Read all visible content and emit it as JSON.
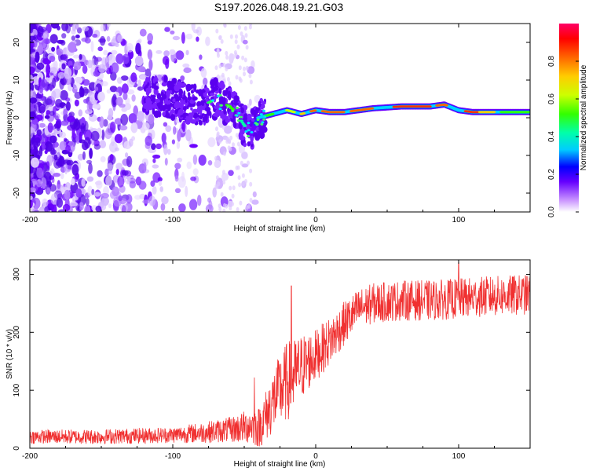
{
  "title": "S197.2026.048.19.21.G03",
  "chart_data": [
    {
      "type": "heatmap",
      "name": "spectrogram",
      "xlabel": "Height of straight line (km)",
      "ylabel": "Frequency (Hz)",
      "xlim": [
        -200,
        150
      ],
      "ylim": [
        -25,
        25
      ],
      "xticks": [
        -200,
        -100,
        0,
        100
      ],
      "yticks": [
        -20,
        -10,
        0,
        10,
        20
      ],
      "colorbar": {
        "label": "Normalized spectral amplitude",
        "range": [
          0,
          1
        ],
        "ticks": [
          0.0,
          0.2,
          0.4,
          0.6,
          0.8
        ],
        "tick_labels": [
          "0.0",
          "0.2",
          "0.4",
          "0.6",
          "0.8"
        ]
      },
      "ridge": {
        "x": [
          -115,
          -100,
          -90,
          -80,
          -70,
          -60,
          -55,
          -50,
          -45,
          -40,
          -30,
          -20,
          -10,
          0,
          10,
          20,
          40,
          60,
          80,
          90,
          100,
          110,
          120,
          150
        ],
        "y": [
          6,
          5,
          4,
          3,
          5,
          3,
          1,
          -2,
          -4,
          0,
          1,
          2,
          1,
          2,
          1.5,
          1.5,
          2.5,
          3,
          3,
          3.5,
          2,
          1.5,
          1.5,
          1.5
        ]
      }
    },
    {
      "type": "line",
      "name": "snr",
      "xlabel": "Height of straight line (km)",
      "ylabel": "SNR (10 * v/v)",
      "xlim": [
        -200,
        150
      ],
      "ylim": [
        0,
        325
      ],
      "xticks": [
        -200,
        -100,
        0,
        100
      ],
      "yticks": [
        0,
        100,
        200,
        300
      ],
      "color": "#f03030",
      "envelope": {
        "x": [
          -200,
          -150,
          -100,
          -75,
          -60,
          -50,
          -45,
          -40,
          -35,
          -30,
          -25,
          -20,
          -15,
          -10,
          -5,
          0,
          10,
          20,
          30,
          40,
          60,
          80,
          100,
          120,
          150
        ],
        "y": [
          20,
          20,
          23,
          28,
          32,
          36,
          40,
          35,
          55,
          80,
          100,
          115,
          125,
          140,
          150,
          160,
          185,
          215,
          240,
          250,
          255,
          255,
          258,
          262,
          265
        ]
      },
      "noise_amplitude": {
        "x": [
          -200,
          -100,
          -60,
          -40,
          -30,
          -20,
          0,
          30,
          150
        ],
        "y": [
          12,
          14,
          22,
          35,
          55,
          70,
          45,
          35,
          35
        ]
      },
      "spikes": [
        {
          "x": -43,
          "y": 122
        },
        {
          "x": -17,
          "y": 280
        },
        {
          "x": 100,
          "y": 320
        }
      ]
    }
  ]
}
